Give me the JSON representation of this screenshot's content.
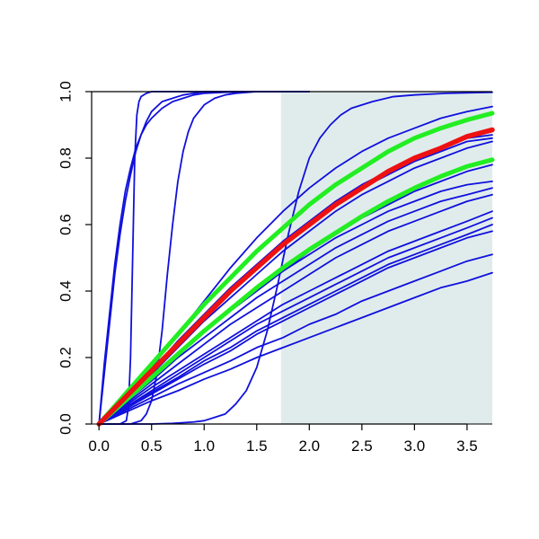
{
  "chart_data": {
    "type": "line",
    "title": "",
    "xlabel": "",
    "ylabel": "",
    "xlim": [
      -0.07,
      3.74
    ],
    "ylim": [
      0.0,
      1.0
    ],
    "x_ticks": [
      0.0,
      0.5,
      1.0,
      1.5,
      2.0,
      2.5,
      3.0,
      3.5
    ],
    "x_tick_labels": [
      "0.0",
      "0.5",
      "1.0",
      "1.5",
      "2.0",
      "2.5",
      "3.0",
      "3.5"
    ],
    "y_ticks": [
      0.0,
      0.2,
      0.4,
      0.6,
      0.8,
      1.0
    ],
    "y_tick_labels": [
      "0.0",
      "0.2",
      "0.4",
      "0.6",
      "0.8",
      "1.0"
    ],
    "grid": false,
    "shaded_region": {
      "x_start": 1.73,
      "x_end": 3.74,
      "color": "#e0ecec"
    },
    "colors": {
      "blue": "#1010dd",
      "red": "#ee1111",
      "green": "#22ee22"
    },
    "series": [
      {
        "color": "blue",
        "width": 1.8,
        "x": [
          0,
          0.05,
          0.1,
          0.15,
          0.2,
          0.25,
          0.3,
          0.35,
          0.4,
          0.45,
          0.5,
          0.6,
          0.7,
          0.8,
          0.9,
          1.0,
          1.2,
          1.5,
          2.0
        ],
        "y": [
          0,
          0.18,
          0.33,
          0.48,
          0.6,
          0.7,
          0.77,
          0.83,
          0.87,
          0.9,
          0.92,
          0.95,
          0.97,
          0.98,
          0.99,
          0.995,
          0.998,
          1.0,
          1.0
        ]
      },
      {
        "color": "blue",
        "width": 1.8,
        "x": [
          0,
          0.05,
          0.1,
          0.15,
          0.2,
          0.25,
          0.3,
          0.35,
          0.4,
          0.45,
          0.5,
          0.6,
          0.7,
          0.8,
          0.9,
          1.0,
          1.2,
          1.5
        ],
        "y": [
          0,
          0.15,
          0.3,
          0.45,
          0.57,
          0.67,
          0.75,
          0.82,
          0.87,
          0.91,
          0.94,
          0.97,
          0.98,
          0.99,
          0.995,
          1.0,
          1.0,
          1.0
        ]
      },
      {
        "color": "blue",
        "width": 1.8,
        "x": [
          0,
          0.2,
          0.26,
          0.28,
          0.3,
          0.32,
          0.34,
          0.36,
          0.38,
          0.4,
          0.45,
          0.5,
          0.6,
          1.0,
          1.5
        ],
        "y": [
          0,
          0,
          0.01,
          0.05,
          0.2,
          0.5,
          0.8,
          0.93,
          0.97,
          0.985,
          0.995,
          1.0,
          1.0,
          1.0,
          1.0
        ]
      },
      {
        "color": "blue",
        "width": 1.8,
        "x": [
          0,
          0.2,
          0.3,
          0.4,
          0.45,
          0.5,
          0.55,
          0.6,
          0.65,
          0.7,
          0.75,
          0.8,
          0.85,
          0.9,
          1.0,
          1.1,
          1.2,
          1.3,
          1.5,
          2.0
        ],
        "y": [
          0,
          0,
          0,
          0.01,
          0.03,
          0.07,
          0.15,
          0.28,
          0.45,
          0.6,
          0.73,
          0.82,
          0.88,
          0.92,
          0.96,
          0.98,
          0.99,
          0.995,
          1.0,
          1.0
        ]
      },
      {
        "color": "blue",
        "width": 1.8,
        "x": [
          0,
          0.3,
          0.5,
          0.7,
          0.9,
          1.0,
          1.1,
          1.2,
          1.3,
          1.4,
          1.5,
          1.6,
          1.7,
          1.8,
          1.9,
          2.0,
          2.1,
          2.2,
          2.3,
          2.4,
          2.6,
          2.8,
          3.0,
          3.3,
          3.74
        ],
        "y": [
          0,
          0,
          0,
          0.002,
          0.006,
          0.01,
          0.02,
          0.03,
          0.06,
          0.1,
          0.17,
          0.28,
          0.42,
          0.57,
          0.7,
          0.8,
          0.86,
          0.9,
          0.93,
          0.95,
          0.97,
          0.985,
          0.99,
          0.995,
          0.998
        ]
      },
      {
        "color": "blue",
        "width": 1.8,
        "x": [
          0,
          0.25,
          0.5,
          0.75,
          1.0,
          1.25,
          1.5,
          1.75,
          2.0,
          2.25,
          2.5,
          2.75,
          3.0,
          3.25,
          3.5,
          3.74
        ],
        "y": [
          0,
          0.08,
          0.17,
          0.27,
          0.37,
          0.47,
          0.56,
          0.64,
          0.71,
          0.77,
          0.82,
          0.86,
          0.89,
          0.92,
          0.94,
          0.955
        ]
      },
      {
        "color": "blue",
        "width": 1.8,
        "x": [
          0,
          0.25,
          0.5,
          0.75,
          1.0,
          1.25,
          1.5,
          1.75,
          2.0,
          2.25,
          2.5,
          2.75,
          3.0,
          3.25,
          3.5,
          3.74
        ],
        "y": [
          0,
          0.08,
          0.16,
          0.25,
          0.33,
          0.41,
          0.48,
          0.55,
          0.61,
          0.67,
          0.72,
          0.76,
          0.8,
          0.83,
          0.86,
          0.87
        ]
      },
      {
        "color": "blue",
        "width": 1.8,
        "x": [
          0,
          0.25,
          0.5,
          0.75,
          1.0,
          1.25,
          1.5,
          1.75,
          2.0,
          2.25,
          2.5,
          2.75,
          3.0,
          3.25,
          3.5,
          3.74
        ],
        "y": [
          0,
          0.08,
          0.16,
          0.24,
          0.32,
          0.4,
          0.47,
          0.54,
          0.6,
          0.66,
          0.71,
          0.75,
          0.79,
          0.82,
          0.85,
          0.86
        ]
      },
      {
        "color": "blue",
        "width": 1.8,
        "x": [
          0,
          0.25,
          0.5,
          0.75,
          1.0,
          1.25,
          1.5,
          1.75,
          2.0,
          2.25,
          2.5,
          2.75,
          3.0,
          3.25,
          3.5,
          3.74
        ],
        "y": [
          0,
          0.075,
          0.15,
          0.23,
          0.31,
          0.38,
          0.45,
          0.52,
          0.58,
          0.64,
          0.69,
          0.73,
          0.77,
          0.8,
          0.83,
          0.85
        ]
      },
      {
        "color": "blue",
        "width": 1.8,
        "x": [
          0,
          0.25,
          0.5,
          0.75,
          1.0,
          1.25,
          1.5,
          1.75,
          2.0,
          2.25,
          2.5,
          2.75,
          3.0,
          3.25,
          3.5,
          3.74
        ],
        "y": [
          0,
          0.07,
          0.14,
          0.21,
          0.28,
          0.34,
          0.4,
          0.46,
          0.51,
          0.56,
          0.6,
          0.64,
          0.67,
          0.7,
          0.72,
          0.73
        ]
      },
      {
        "color": "blue",
        "width": 1.8,
        "x": [
          0,
          0.25,
          0.5,
          0.75,
          1.0,
          1.25,
          1.5,
          1.75,
          2.0,
          2.25,
          2.5,
          2.75,
          3.0,
          3.25,
          3.5,
          3.74
        ],
        "y": [
          0,
          0.065,
          0.13,
          0.2,
          0.26,
          0.32,
          0.38,
          0.43,
          0.48,
          0.53,
          0.57,
          0.61,
          0.64,
          0.67,
          0.69,
          0.71
        ]
      },
      {
        "color": "blue",
        "width": 1.8,
        "x": [
          0,
          0.25,
          0.5,
          0.75,
          1.0,
          1.25,
          1.5,
          1.75,
          2.0,
          2.25,
          2.5,
          2.75,
          3.0,
          3.25,
          3.5,
          3.74
        ],
        "y": [
          0,
          0.06,
          0.12,
          0.18,
          0.24,
          0.3,
          0.35,
          0.4,
          0.45,
          0.5,
          0.54,
          0.58,
          0.61,
          0.64,
          0.67,
          0.69
        ]
      },
      {
        "color": "blue",
        "width": 1.8,
        "x": [
          0,
          0.25,
          0.5,
          0.75,
          1.0,
          1.25,
          1.5,
          1.75,
          2.0,
          2.25,
          2.5,
          2.75,
          3.0,
          3.25,
          3.5,
          3.74
        ],
        "y": [
          0,
          0.055,
          0.11,
          0.16,
          0.21,
          0.26,
          0.31,
          0.36,
          0.4,
          0.44,
          0.48,
          0.52,
          0.55,
          0.58,
          0.61,
          0.64
        ]
      },
      {
        "color": "blue",
        "width": 1.8,
        "x": [
          0,
          0.25,
          0.5,
          0.75,
          1.0,
          1.25,
          1.5,
          1.75,
          2.0,
          2.25,
          2.5,
          2.75,
          3.0,
          3.25,
          3.5,
          3.74
        ],
        "y": [
          0,
          0.05,
          0.1,
          0.15,
          0.2,
          0.25,
          0.3,
          0.34,
          0.38,
          0.42,
          0.46,
          0.5,
          0.53,
          0.56,
          0.59,
          0.62
        ]
      },
      {
        "color": "blue",
        "width": 1.8,
        "x": [
          0,
          0.25,
          0.5,
          0.75,
          1.0,
          1.25,
          1.5,
          1.75,
          2.0,
          2.25,
          2.5,
          2.75,
          3.0,
          3.25,
          3.5,
          3.74
        ],
        "y": [
          0,
          0.05,
          0.095,
          0.14,
          0.19,
          0.23,
          0.28,
          0.32,
          0.36,
          0.4,
          0.44,
          0.48,
          0.51,
          0.54,
          0.57,
          0.6
        ]
      },
      {
        "color": "blue",
        "width": 1.8,
        "x": [
          0,
          0.25,
          0.5,
          0.75,
          1.0,
          1.25,
          1.5,
          1.75,
          2.0,
          2.25,
          2.5,
          2.75,
          3.0,
          3.25,
          3.5,
          3.74
        ],
        "y": [
          0,
          0.045,
          0.09,
          0.135,
          0.18,
          0.22,
          0.27,
          0.31,
          0.35,
          0.39,
          0.43,
          0.47,
          0.5,
          0.53,
          0.56,
          0.58
        ]
      },
      {
        "color": "blue",
        "width": 1.8,
        "x": [
          0,
          0.25,
          0.5,
          0.75,
          1.0,
          1.25,
          1.5,
          1.75,
          2.0,
          2.25,
          2.5,
          2.75,
          3.0,
          3.25,
          3.5,
          3.74
        ],
        "y": [
          0,
          0.04,
          0.08,
          0.12,
          0.155,
          0.19,
          0.23,
          0.26,
          0.3,
          0.33,
          0.37,
          0.4,
          0.43,
          0.46,
          0.49,
          0.51
        ]
      },
      {
        "color": "blue",
        "width": 1.8,
        "x": [
          0,
          0.25,
          0.5,
          0.75,
          1.0,
          1.25,
          1.5,
          1.75,
          2.0,
          2.25,
          2.5,
          2.75,
          3.0,
          3.25,
          3.5,
          3.74
        ],
        "y": [
          0,
          0.035,
          0.07,
          0.1,
          0.135,
          0.165,
          0.2,
          0.23,
          0.26,
          0.29,
          0.32,
          0.35,
          0.38,
          0.41,
          0.43,
          0.455
        ]
      },
      {
        "color": "blue",
        "width": 1.8,
        "x": [
          0,
          0.25,
          0.5,
          0.75,
          1.0,
          1.25,
          1.5,
          1.75,
          2.0,
          2.25,
          2.5,
          2.75,
          3.0,
          3.25,
          3.5,
          3.74
        ],
        "y": [
          0,
          0.07,
          0.14,
          0.21,
          0.28,
          0.34,
          0.41,
          0.46,
          0.52,
          0.57,
          0.62,
          0.66,
          0.7,
          0.73,
          0.76,
          0.78
        ]
      },
      {
        "color": "green",
        "width": 5,
        "x": [
          0,
          0.25,
          0.5,
          0.75,
          1.0,
          1.25,
          1.5,
          1.75,
          2.0,
          2.25,
          2.5,
          2.75,
          3.0,
          3.25,
          3.5,
          3.74
        ],
        "y": [
          0,
          0.09,
          0.18,
          0.27,
          0.36,
          0.44,
          0.52,
          0.59,
          0.66,
          0.72,
          0.77,
          0.82,
          0.86,
          0.89,
          0.915,
          0.935
        ]
      },
      {
        "color": "green",
        "width": 5,
        "x": [
          0,
          0.25,
          0.5,
          0.75,
          1.0,
          1.25,
          1.5,
          1.75,
          2.0,
          2.25,
          2.5,
          2.75,
          3.0,
          3.25,
          3.5,
          3.74
        ],
        "y": [
          0,
          0.07,
          0.14,
          0.21,
          0.28,
          0.345,
          0.41,
          0.47,
          0.525,
          0.575,
          0.625,
          0.67,
          0.71,
          0.745,
          0.775,
          0.795
        ]
      },
      {
        "color": "red",
        "width": 5.5,
        "x": [
          0,
          0.25,
          0.5,
          0.75,
          1.0,
          1.25,
          1.5,
          1.75,
          2.0,
          2.25,
          2.5,
          2.75,
          3.0,
          3.25,
          3.5,
          3.74
        ],
        "y": [
          0,
          0.08,
          0.16,
          0.24,
          0.32,
          0.4,
          0.47,
          0.54,
          0.6,
          0.66,
          0.71,
          0.76,
          0.8,
          0.83,
          0.865,
          0.885
        ]
      }
    ]
  }
}
